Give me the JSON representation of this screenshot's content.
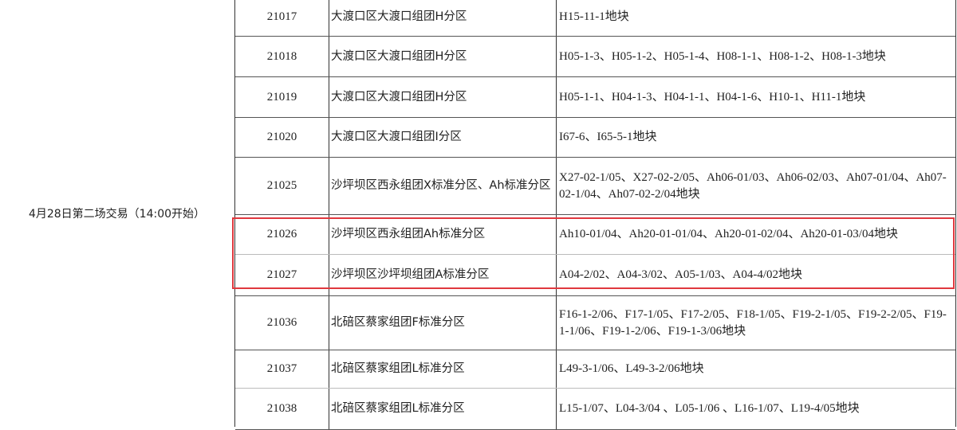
{
  "session_label": "4月28日第二场交易（14:00开始）",
  "highlight_color": "#e0383e",
  "rows": [
    {
      "id": "21017",
      "area": "大渡口区大渡口组团H分区",
      "parcels": "H15-11-1地块"
    },
    {
      "id": "21018",
      "area": "大渡口区大渡口组团H分区",
      "parcels": "H05-1-3、H05-1-2、H05-1-4、H08-1-1、H08-1-2、H08-1-3地块"
    },
    {
      "id": "21019",
      "area": "大渡口区大渡口组团H分区",
      "parcels": "H05-1-1、H04-1-3、H04-1-1、H04-1-6、H10-1、H11-1地块"
    },
    {
      "id": "21020",
      "area": "大渡口区大渡口组团I分区",
      "parcels": "I67-6、I65-5-1地块"
    },
    {
      "id": "21025",
      "area": "沙坪坝区西永组团X标准分区、Ah标准分区",
      "parcels": "X27-02-1/05、X27-02-2/05、Ah06-01/03、Ah06-02/03、Ah07-01/04、Ah07-02-1/04、Ah07-02-2/04地块"
    },
    {
      "id": "21026",
      "area": "沙坪坝区西永组团Ah标准分区",
      "parcels": "Ah10-01/04、Ah20-01-01/04、Ah20-01-02/04、Ah20-01-03/04地块"
    },
    {
      "id": "21027",
      "area": "沙坪坝区沙坪坝组团A标准分区",
      "parcels": "A04-2/02、A04-3/02、A05-1/03、A04-4/02地块"
    },
    {
      "id": "21036",
      "area": "北碚区蔡家组团F标准分区",
      "parcels": "F16-1-2/06、F17-1/05、F17-2/05、F18-1/05、F19-2-1/05、F19-2-2/05、F19-1-1/06、F19-1-2/06、F19-1-3/06地块"
    },
    {
      "id": "21037",
      "area": "北碚区蔡家组团L标准分区",
      "parcels": "L49-3-1/06、L49-3-2/06地块"
    },
    {
      "id": "21038",
      "area": "北碚区蔡家组团L标准分区",
      "parcels": "L15-1/07、L04-3/04 、L05-1/06 、L16-1/07、L19-4/05地块"
    }
  ]
}
